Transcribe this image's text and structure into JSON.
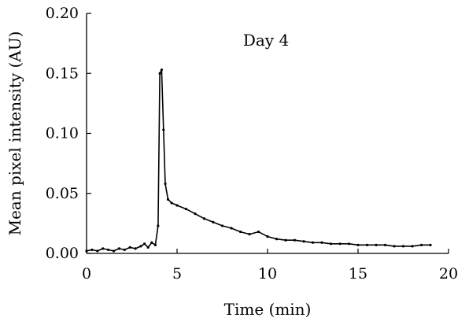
{
  "chart_data": {
    "type": "line",
    "title": "",
    "annotation": "Day 4",
    "xlabel": "Time (min)",
    "ylabel": "Mean pixel intensity (AU)",
    "xlim": [
      0,
      20
    ],
    "ylim": [
      0,
      0.2
    ],
    "x_ticks": [
      "0",
      "5",
      "10",
      "15",
      "20"
    ],
    "y_ticks": [
      "0.00",
      "0.05",
      "0.10",
      "0.15",
      "0.20"
    ],
    "grid": false,
    "legend": "none",
    "series": [
      {
        "values": [
          [
            0.0,
            0.002
          ],
          [
            0.3,
            0.003
          ],
          [
            0.6,
            0.002
          ],
          [
            0.9,
            0.004
          ],
          [
            1.2,
            0.003
          ],
          [
            1.5,
            0.002
          ],
          [
            1.8,
            0.004
          ],
          [
            2.1,
            0.003
          ],
          [
            2.4,
            0.005
          ],
          [
            2.7,
            0.004
          ],
          [
            3.0,
            0.006
          ],
          [
            3.2,
            0.008
          ],
          [
            3.4,
            0.005
          ],
          [
            3.6,
            0.009
          ],
          [
            3.8,
            0.007
          ],
          [
            3.95,
            0.023
          ],
          [
            4.05,
            0.15
          ],
          [
            4.15,
            0.153
          ],
          [
            4.25,
            0.103
          ],
          [
            4.35,
            0.058
          ],
          [
            4.5,
            0.045
          ],
          [
            4.7,
            0.042
          ],
          [
            5.0,
            0.04
          ],
          [
            5.5,
            0.037
          ],
          [
            6.0,
            0.033
          ],
          [
            6.5,
            0.029
          ],
          [
            7.0,
            0.026
          ],
          [
            7.5,
            0.023
          ],
          [
            8.0,
            0.021
          ],
          [
            8.5,
            0.018
          ],
          [
            9.0,
            0.016
          ],
          [
            9.5,
            0.018
          ],
          [
            10.0,
            0.014
          ],
          [
            10.5,
            0.012
          ],
          [
            11.0,
            0.011
          ],
          [
            11.5,
            0.011
          ],
          [
            12.0,
            0.01
          ],
          [
            12.5,
            0.009
          ],
          [
            13.0,
            0.009
          ],
          [
            13.5,
            0.008
          ],
          [
            14.0,
            0.008
          ],
          [
            14.5,
            0.008
          ],
          [
            15.0,
            0.007
          ],
          [
            15.5,
            0.007
          ],
          [
            16.0,
            0.007
          ],
          [
            16.5,
            0.007
          ],
          [
            17.0,
            0.006
          ],
          [
            17.5,
            0.006
          ],
          [
            18.0,
            0.006
          ],
          [
            18.5,
            0.007
          ],
          [
            19.0,
            0.007
          ]
        ]
      }
    ]
  }
}
